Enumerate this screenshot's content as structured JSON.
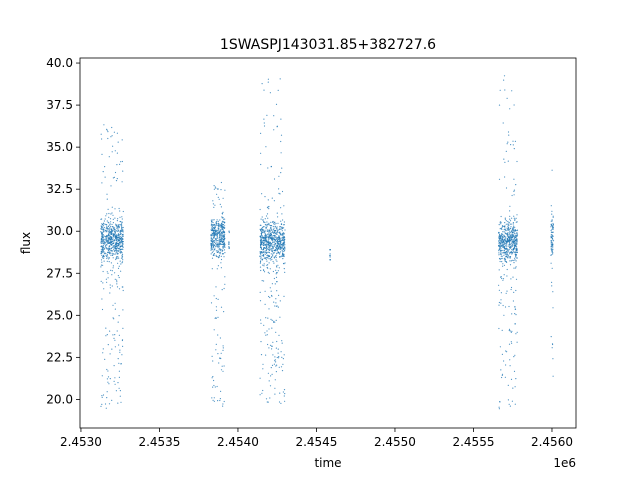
{
  "chart_data": {
    "type": "scatter",
    "title": "1SWASPJ143031.85+382727.6",
    "xlabel": "time",
    "ylabel": "flux",
    "x_offset_label": "1e6",
    "xlim": [
      2452994,
      2456153
    ],
    "ylim": [
      18.3,
      40.3
    ],
    "x_ticks": [
      2453000,
      2453500,
      2454000,
      2454500,
      2455000,
      2455500,
      2456000
    ],
    "x_tick_labels": [
      "2.4530",
      "2.4535",
      "2.4540",
      "2.4545",
      "2.4550",
      "2.4555",
      "2.4560"
    ],
    "y_ticks": [
      20.0,
      22.5,
      25.0,
      27.5,
      30.0,
      32.5,
      35.0,
      37.5,
      40.0
    ],
    "y_tick_labels": [
      "20.0",
      "22.5",
      "25.0",
      "27.5",
      "30.0",
      "32.5",
      "35.0",
      "37.5",
      "40.0"
    ],
    "grid": false,
    "legend": "none",
    "color": "#1f77b4",
    "clusters": [
      {
        "time_range": [
          2453127,
          2453270
        ],
        "core_flux": 29.5,
        "flux_min": 19.4,
        "flux_max": 36.4
      },
      {
        "time_range": [
          2453828,
          2453917
        ],
        "core_flux": 29.7,
        "flux_min": 19.5,
        "flux_max": 33.1
      },
      {
        "time_range": [
          2453942,
          2453945
        ],
        "core_flux": 29.5,
        "flux_min": 29.0,
        "flux_max": 30.0
      },
      {
        "time_range": [
          2454140,
          2454300
        ],
        "core_flux": 29.4,
        "flux_min": 19.5,
        "flux_max": 39.2
      },
      {
        "time_range": [
          2454585,
          2454588
        ],
        "core_flux": 28.6,
        "flux_min": 28.3,
        "flux_max": 28.9
      },
      {
        "time_range": [
          2455660,
          2455780
        ],
        "core_flux": 29.4,
        "flux_min": 19.4,
        "flux_max": 39.3
      },
      {
        "time_range": [
          2455993,
          2456010
        ],
        "core_flux": 29.6,
        "flux_min": 19.5,
        "flux_max": 34.5
      }
    ]
  }
}
